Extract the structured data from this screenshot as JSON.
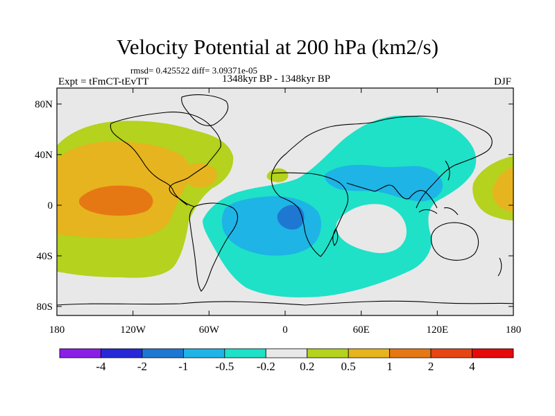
{
  "title": "Velocity Potential at 200 hPa (km2/s)",
  "stats": "rmsd= 0.425522 diff= 3.09371e-05",
  "left_label": "Expt = tFmCT-tEvTT",
  "period": "1348kyr BP - 1348kyr BP",
  "season": "DJF",
  "map": {
    "lat_ticks": [
      "80N",
      "40N",
      "0",
      "40S",
      "80S"
    ],
    "lon_ticks": [
      "180",
      "120W",
      "60W",
      "0",
      "60E",
      "120E",
      "180"
    ]
  },
  "colorbar": {
    "labels": [
      "-4",
      "-2",
      "-1",
      "-0.5",
      "-0.2",
      "0.2",
      "0.5",
      "1",
      "2",
      "4"
    ],
    "colors": [
      "#8a1fe6",
      "#2828d8",
      "#1e78d2",
      "#1eb4e6",
      "#1ee1c8",
      "#e8e8e8",
      "#b4d21e",
      "#e6b41e",
      "#e67814",
      "#e64614",
      "#e60a0a"
    ]
  },
  "field_colors": {
    "neutral": "#e8e8e8",
    "pos_weak": "#b4d21e",
    "pos_mid": "#e6b41e",
    "pos_strong": "#e67814",
    "neg_weak": "#1ee1c8",
    "neg_mid": "#1eb4e6",
    "neg_strong": "#1e78d2"
  }
}
